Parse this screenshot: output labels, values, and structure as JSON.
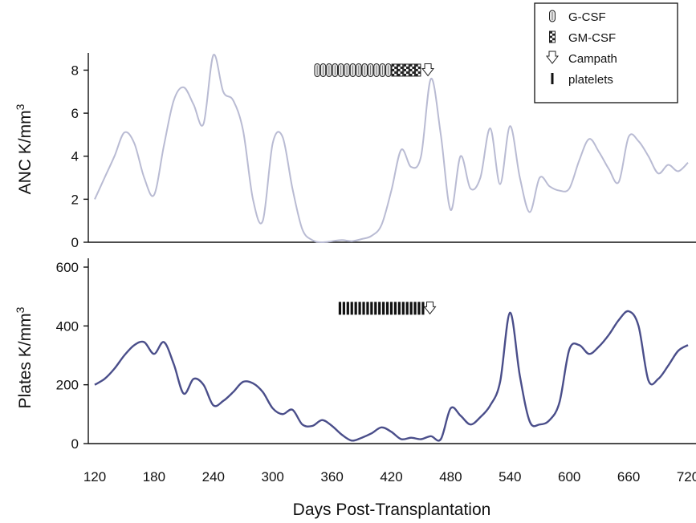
{
  "chart_data": [
    {
      "type": "line",
      "id": "anc",
      "ylabel": "ANC K/mm",
      "ylabel_sup": "3",
      "ylim": [
        0,
        8.8
      ],
      "yticks": [
        0,
        2,
        4,
        6,
        8
      ],
      "xlim": [
        120,
        720
      ],
      "series": [
        {
          "color": "#b9bbd3",
          "x": [
            120,
            130,
            140,
            150,
            160,
            170,
            180,
            190,
            200,
            210,
            220,
            230,
            240,
            250,
            260,
            270,
            280,
            290,
            300,
            310,
            320,
            330,
            340,
            350,
            360,
            370,
            380,
            390,
            400,
            410,
            420,
            430,
            440,
            450,
            460,
            470,
            480,
            490,
            500,
            510,
            520,
            530,
            540,
            550,
            560,
            570,
            580,
            590,
            600,
            610,
            620,
            630,
            640,
            650,
            660,
            670,
            680,
            690,
            700,
            710,
            720
          ],
          "y": [
            2.0,
            3.0,
            4.0,
            5.1,
            4.6,
            3.0,
            2.2,
            4.5,
            6.6,
            7.2,
            6.4,
            5.5,
            8.7,
            7.0,
            6.6,
            5.2,
            2.0,
            1.0,
            4.6,
            4.9,
            2.5,
            0.6,
            0.1,
            0.0,
            0.05,
            0.1,
            0.05,
            0.15,
            0.3,
            0.8,
            2.4,
            4.3,
            3.5,
            4.0,
            7.6,
            5.0,
            1.5,
            4.0,
            2.5,
            3.0,
            5.3,
            2.7,
            5.4,
            3.0,
            1.4,
            3.0,
            2.6,
            2.4,
            2.5,
            3.8,
            4.8,
            4.2,
            3.4,
            2.8,
            4.9,
            4.7,
            4.0,
            3.2,
            3.6,
            3.3,
            3.7
          ]
        }
      ]
    },
    {
      "type": "line",
      "id": "platelets",
      "ylabel": "Plates K/mm",
      "ylabel_sup": "3",
      "ylim": [
        0,
        600
      ],
      "yticks": [
        0,
        200,
        400,
        600
      ],
      "xlim": [
        120,
        720
      ],
      "xticks": [
        120,
        180,
        240,
        300,
        360,
        420,
        480,
        540,
        600,
        660,
        720
      ],
      "xlabel": "Days Post-Transplantation",
      "series": [
        {
          "color": "#4a4e8a",
          "x": [
            120,
            130,
            140,
            150,
            160,
            170,
            180,
            190,
            200,
            210,
            220,
            230,
            240,
            250,
            260,
            270,
            280,
            290,
            300,
            310,
            320,
            330,
            340,
            350,
            360,
            370,
            380,
            390,
            400,
            410,
            420,
            430,
            440,
            450,
            460,
            470,
            480,
            490,
            500,
            510,
            520,
            530,
            540,
            550,
            560,
            570,
            580,
            590,
            600,
            610,
            620,
            630,
            640,
            650,
            660,
            670,
            680,
            690,
            700,
            710,
            720
          ],
          "y": [
            200,
            220,
            255,
            300,
            335,
            345,
            305,
            345,
            270,
            170,
            220,
            200,
            130,
            145,
            175,
            210,
            205,
            175,
            120,
            100,
            115,
            65,
            60,
            80,
            60,
            30,
            10,
            20,
            35,
            55,
            40,
            15,
            20,
            15,
            25,
            15,
            120,
            95,
            65,
            90,
            130,
            210,
            445,
            230,
            75,
            65,
            80,
            140,
            320,
            335,
            305,
            330,
            370,
            420,
            450,
            400,
            215,
            220,
            265,
            315,
            335
          ]
        }
      ]
    }
  ],
  "legend": {
    "items": [
      {
        "label": "G-CSF",
        "icon": "oval-hatched-icon"
      },
      {
        "label": "GM-CSF",
        "icon": "checkered-icon"
      },
      {
        "label": "Campath",
        "icon": "down-arrow-icon"
      },
      {
        "label": "platelets",
        "icon": "bar-icon"
      }
    ]
  },
  "treatments": {
    "anc_panel": {
      "gcsf_days": [
        345,
        351,
        357,
        363,
        369,
        375,
        381,
        387,
        393,
        399,
        405,
        411,
        417
      ],
      "gmcsf_days": [
        423,
        429,
        435,
        441,
        447
      ],
      "campath_day": 457,
      "y_value": 8
    },
    "platelet_panel": {
      "platelet_days": [
        368,
        372,
        376,
        380,
        384,
        388,
        392,
        396,
        400,
        404,
        408,
        412,
        416,
        420,
        424,
        428,
        432,
        436,
        440,
        444,
        448,
        452
      ],
      "campath_day": 459,
      "y_value": 460
    }
  }
}
